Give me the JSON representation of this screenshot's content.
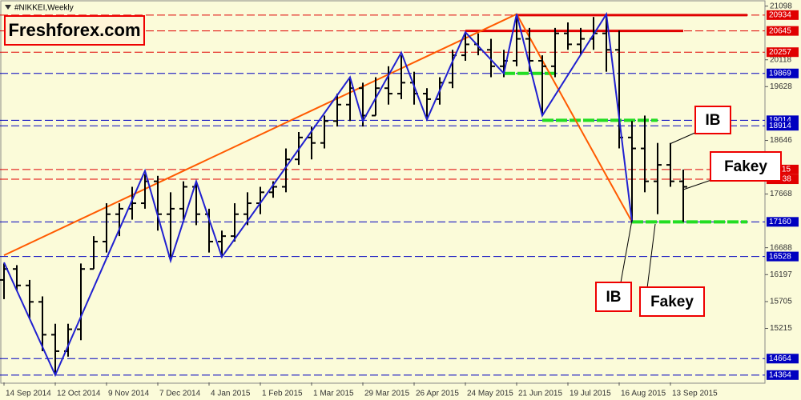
{
  "chart_data": {
    "type": "ohlc",
    "title": "#NIKKEI,Weekly",
    "logo": "Freshforex.com",
    "categories": [
      "14 Sep 2014",
      null,
      null,
      null,
      "12 Oct 2014",
      null,
      null,
      null,
      "9 Nov 2014",
      null,
      null,
      null,
      "7 Dec 2014",
      null,
      null,
      null,
      "4 Jan 2015",
      null,
      null,
      null,
      "1 Feb 2015",
      null,
      null,
      null,
      "1 Mar 2015",
      null,
      null,
      null,
      "29 Mar 2015",
      null,
      null,
      null,
      "26 Apr 2015",
      null,
      null,
      null,
      "24 May 2015",
      null,
      null,
      null,
      "21 Jun 2015",
      null,
      null,
      null,
      "19 Jul 2015",
      null,
      null,
      null,
      "16 Aug 2015",
      null,
      null,
      null,
      "13 Sep 2015",
      null
    ],
    "open": [
      16100,
      16300,
      16000,
      15700,
      15100,
      14800,
      15200,
      16300,
      16800,
      17300,
      17400,
      17500,
      17900,
      17300,
      17400,
      17800,
      17300,
      16800,
      16900,
      17300,
      17500,
      17700,
      17800,
      18300,
      18700,
      18600,
      19000,
      19300,
      19600,
      19100,
      19600,
      19500,
      19700,
      19500,
      19400,
      19700,
      20200,
      20400,
      20300,
      20000,
      20100,
      20500,
      20100,
      20000,
      20600,
      20400,
      20500,
      20600,
      20300,
      18700,
      18500,
      17900,
      18200,
      17900
    ],
    "high": [
      16400,
      16370,
      16100,
      15800,
      15300,
      15300,
      16400,
      16900,
      17500,
      17500,
      17800,
      18030,
      18000,
      17700,
      17900,
      17900,
      17400,
      17000,
      17500,
      17700,
      17800,
      17900,
      18500,
      18800,
      18900,
      19100,
      19500,
      19780,
      19700,
      19800,
      20000,
      20200,
      19900,
      19600,
      19800,
      20300,
      20600,
      20600,
      20500,
      20300,
      20934,
      20700,
      20200,
      20700,
      20800,
      20700,
      20900,
      20950,
      20650,
      19000,
      19100,
      18600,
      18600,
      18115
    ],
    "low": [
      15750,
      15900,
      15400,
      14800,
      14364,
      14700,
      15000,
      16300,
      16600,
      16900,
      17200,
      17400,
      17000,
      16450,
      17200,
      17100,
      16600,
      16550,
      16800,
      17100,
      17300,
      17600,
      17700,
      18200,
      18300,
      18500,
      18900,
      19000,
      18900,
      19100,
      19300,
      19400,
      19300,
      19027,
      19300,
      19600,
      20100,
      20200,
      19800,
      19800,
      20000,
      19900,
      19100,
      19800,
      20300,
      20200,
      20300,
      19900,
      18500,
      17160,
      17700,
      17300,
      17800,
      17160
    ],
    "close": [
      16300,
      16000,
      15700,
      15100,
      14800,
      15200,
      16300,
      16800,
      17300,
      17400,
      17500,
      17900,
      17300,
      17400,
      17800,
      17300,
      16800,
      16900,
      17300,
      17500,
      17700,
      17800,
      18300,
      18700,
      18600,
      19000,
      19300,
      19600,
      19100,
      19600,
      19500,
      19700,
      19500,
      19400,
      19700,
      20200,
      20400,
      20300,
      20000,
      20100,
      20500,
      20100,
      20000,
      20600,
      20400,
      20500,
      20600,
      20300,
      18700,
      18500,
      17900,
      18200,
      17900,
      17800
    ],
    "ylim": [
      14230,
      21180
    ],
    "yticks": [
      21098,
      20118,
      19628,
      18646,
      17668,
      16688,
      16197,
      15705,
      15215
    ],
    "levels": [
      {
        "value": 20934,
        "color": "#e00000"
      },
      {
        "value": 20645,
        "color": "#e00000"
      },
      {
        "value": 20257,
        "color": "#e00000"
      },
      {
        "value": 19869,
        "color": "#0000c0"
      },
      {
        "value": 19014,
        "color": "#0000c0"
      },
      {
        "value": 18914,
        "color": "#0000c0"
      },
      {
        "value": 18115,
        "color": "#e00000"
      },
      {
        "value": 17938,
        "color": "#e00000"
      },
      {
        "value": 17160,
        "color": "#0000c0"
      },
      {
        "value": 16528,
        "color": "#0000c0"
      },
      {
        "value": 14664,
        "color": "#0000c0"
      },
      {
        "value": 14364,
        "color": "#0000c0"
      }
    ],
    "zigzag": {
      "color": "#2020d0",
      "x": [
        0,
        4,
        11,
        13,
        15,
        17,
        27,
        28,
        31,
        33,
        36,
        39,
        40,
        42,
        47,
        49
      ],
      "values": [
        16420,
        14364,
        18090,
        16450,
        17900,
        16520,
        19800,
        19000,
        20250,
        19027,
        20620,
        19869,
        20952,
        19100,
        20950,
        17160
      ]
    },
    "trendline": {
      "color": "#ff5a00",
      "x": [
        0,
        40,
        49
      ],
      "values": [
        16550,
        20952,
        17160
      ]
    },
    "zones": [
      {
        "from": 39,
        "to": 43,
        "value": 19869,
        "color": "#22dd22"
      },
      {
        "from": 42,
        "to": 51,
        "value": 19014,
        "color": "#22dd22"
      },
      {
        "from": 49,
        "to": 58,
        "value": 17160,
        "color": "#22dd22"
      }
    ],
    "resistance": [
      {
        "from": 40,
        "to": 58,
        "value": 20934,
        "color": "#e00000"
      },
      {
        "from": 36,
        "to": 53,
        "value": 20645,
        "color": "#e00000"
      }
    ],
    "annotations": [
      "IB",
      "Fakey",
      "IB",
      "Fakey"
    ]
  }
}
